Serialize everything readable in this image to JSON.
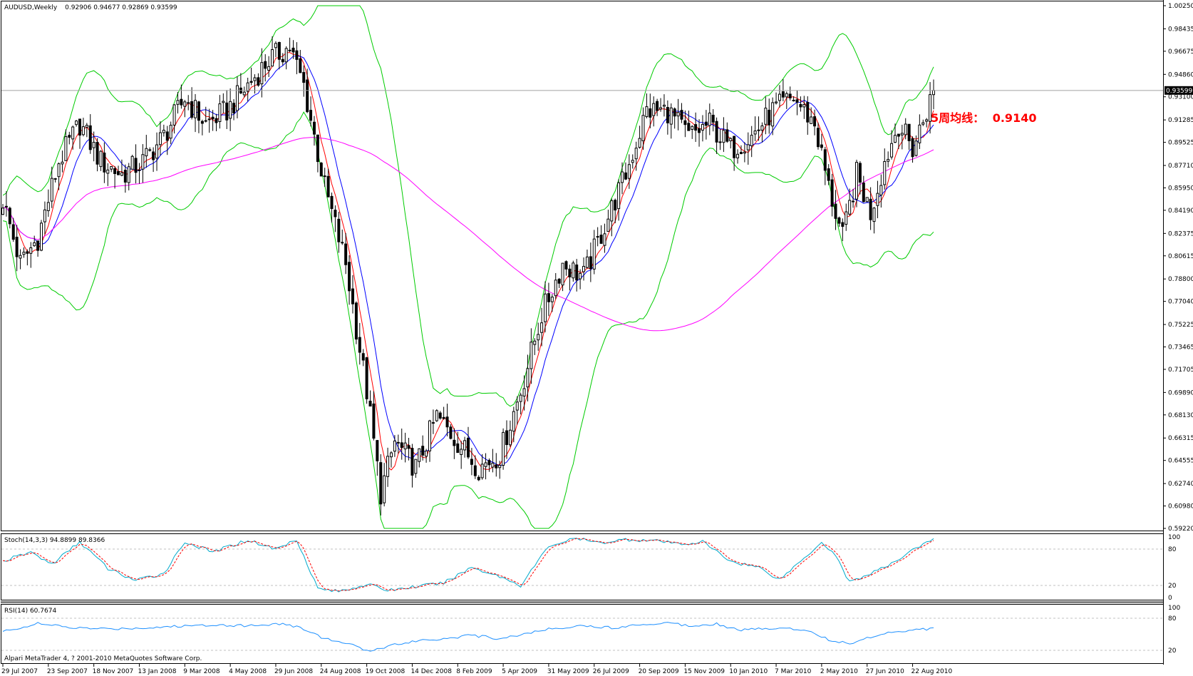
{
  "header": {
    "symbol": "AUDUSD,Weekly",
    "ohlc": "0.92906 0.94677 0.92869 0.93599"
  },
  "annotation": {
    "label": "5周均线：",
    "value": "0.9140"
  },
  "price_axis": {
    "current_price": "0.93599",
    "current_price_num": 0.93599,
    "ticks": [
      "1.00250",
      "0.98435",
      "0.96675",
      "0.94860",
      "0.93100",
      "0.91285",
      "0.89525",
      "0.87710",
      "0.85950",
      "0.84190",
      "0.82375",
      "0.80615",
      "0.78800",
      "0.77040",
      "0.75225",
      "0.73465",
      "0.71705",
      "0.69890",
      "0.68130",
      "0.66315",
      "0.64555",
      "0.62740",
      "0.60980",
      "0.59220"
    ],
    "range": [
      0.5922,
      1.0025
    ]
  },
  "time_axis": {
    "labels": [
      "29 Jul 2007",
      "23 Sep 2007",
      "18 Nov 2007",
      "13 Jan 2008",
      "9 Mar 2008",
      "4 May 2008",
      "29 Jun 2008",
      "24 Aug 2008",
      "19 Oct 2008",
      "14 Dec 2008",
      "8 Feb 2009",
      "5 Apr 2009",
      "31 May 2009",
      "26 Jul 2009",
      "20 Sep 2009",
      "15 Nov 2009",
      "10 Jan 2010",
      "7 Mar 2010",
      "2 May 2010",
      "27 Jun 2010",
      "22 Aug 2010"
    ]
  },
  "stoch_panel": {
    "label": "Stoch(14,3,3) 94.8899 89.8366",
    "ticks": [
      "100",
      "80",
      "20",
      "0"
    ]
  },
  "rsi_panel": {
    "label": "RSI(14) 60.7674",
    "ticks": [
      "100",
      "80",
      "20"
    ]
  },
  "footer": {
    "copyright": "Alpari MetaTrader 4, ? 2001-2010 MetaQuotes Software Corp."
  },
  "colors": {
    "bullish": "#ffffff",
    "bearish": "#000000",
    "ma_fast": "#ff0000",
    "ma_slow": "#0000ff",
    "ma_long": "#ff00ff",
    "bollinger": "#00cc00",
    "stoch_main": "#00aacc",
    "stoch_signal": "#ff0000",
    "rsi": "#1e90ff"
  },
  "chart_data": {
    "type": "candlestick",
    "title": "AUDUSD,Weekly",
    "ylim": [
      0.5922,
      1.0025
    ],
    "price_path": [
      [
        0,
        0.85
      ],
      [
        5,
        0.8
      ],
      [
        10,
        0.82
      ],
      [
        16,
        0.88
      ],
      [
        22,
        0.91
      ],
      [
        28,
        0.88
      ],
      [
        34,
        0.87
      ],
      [
        40,
        0.88
      ],
      [
        46,
        0.9
      ],
      [
        52,
        0.93
      ],
      [
        58,
        0.91
      ],
      [
        64,
        0.92
      ],
      [
        70,
        0.94
      ],
      [
        76,
        0.96
      ],
      [
        82,
        0.97
      ],
      [
        86,
        0.94
      ],
      [
        92,
        0.86
      ],
      [
        98,
        0.8
      ],
      [
        104,
        0.7
      ],
      [
        108,
        0.62
      ],
      [
        112,
        0.66
      ],
      [
        118,
        0.64
      ],
      [
        124,
        0.68
      ],
      [
        130,
        0.66
      ],
      [
        136,
        0.64
      ],
      [
        142,
        0.65
      ],
      [
        148,
        0.7
      ],
      [
        154,
        0.76
      ],
      [
        160,
        0.8
      ],
      [
        166,
        0.79
      ],
      [
        172,
        0.83
      ],
      [
        178,
        0.87
      ],
      [
        184,
        0.92
      ],
      [
        190,
        0.92
      ],
      [
        196,
        0.9
      ],
      [
        202,
        0.91
      ],
      [
        208,
        0.89
      ],
      [
        214,
        0.9
      ],
      [
        220,
        0.92
      ],
      [
        226,
        0.93
      ],
      [
        232,
        0.91
      ],
      [
        236,
        0.86
      ],
      [
        240,
        0.82
      ],
      [
        244,
        0.87
      ],
      [
        248,
        0.84
      ],
      [
        252,
        0.88
      ],
      [
        256,
        0.91
      ],
      [
        260,
        0.89
      ],
      [
        264,
        0.92
      ],
      [
        266,
        0.936
      ]
    ],
    "stoch_path": [
      [
        0,
        60
      ],
      [
        8,
        75
      ],
      [
        14,
        55
      ],
      [
        22,
        92
      ],
      [
        30,
        48
      ],
      [
        38,
        28
      ],
      [
        46,
        40
      ],
      [
        52,
        92
      ],
      [
        60,
        75
      ],
      [
        70,
        95
      ],
      [
        78,
        80
      ],
      [
        84,
        96
      ],
      [
        90,
        15
      ],
      [
        96,
        10
      ],
      [
        104,
        22
      ],
      [
        110,
        12
      ],
      [
        118,
        18
      ],
      [
        126,
        24
      ],
      [
        134,
        50
      ],
      [
        142,
        35
      ],
      [
        148,
        20
      ],
      [
        156,
        85
      ],
      [
        164,
        98
      ],
      [
        170,
        90
      ],
      [
        178,
        96
      ],
      [
        186,
        94
      ],
      [
        194,
        88
      ],
      [
        200,
        92
      ],
      [
        208,
        60
      ],
      [
        216,
        50
      ],
      [
        222,
        30
      ],
      [
        228,
        60
      ],
      [
        234,
        92
      ],
      [
        238,
        70
      ],
      [
        242,
        25
      ],
      [
        248,
        40
      ],
      [
        254,
        55
      ],
      [
        260,
        80
      ],
      [
        266,
        95
      ]
    ],
    "rsi_path": [
      [
        0,
        55
      ],
      [
        10,
        70
      ],
      [
        20,
        62
      ],
      [
        30,
        60
      ],
      [
        40,
        62
      ],
      [
        50,
        65
      ],
      [
        60,
        68
      ],
      [
        70,
        66
      ],
      [
        80,
        70
      ],
      [
        86,
        60
      ],
      [
        92,
        42
      ],
      [
        100,
        30
      ],
      [
        104,
        18
      ],
      [
        110,
        28
      ],
      [
        118,
        38
      ],
      [
        126,
        42
      ],
      [
        134,
        48
      ],
      [
        142,
        42
      ],
      [
        150,
        52
      ],
      [
        158,
        62
      ],
      [
        166,
        66
      ],
      [
        174,
        62
      ],
      [
        182,
        68
      ],
      [
        190,
        72
      ],
      [
        196,
        66
      ],
      [
        204,
        70
      ],
      [
        210,
        58
      ],
      [
        216,
        60
      ],
      [
        222,
        62
      ],
      [
        230,
        58
      ],
      [
        236,
        40
      ],
      [
        242,
        32
      ],
      [
        248,
        45
      ],
      [
        254,
        55
      ],
      [
        260,
        58
      ],
      [
        266,
        61
      ]
    ]
  }
}
